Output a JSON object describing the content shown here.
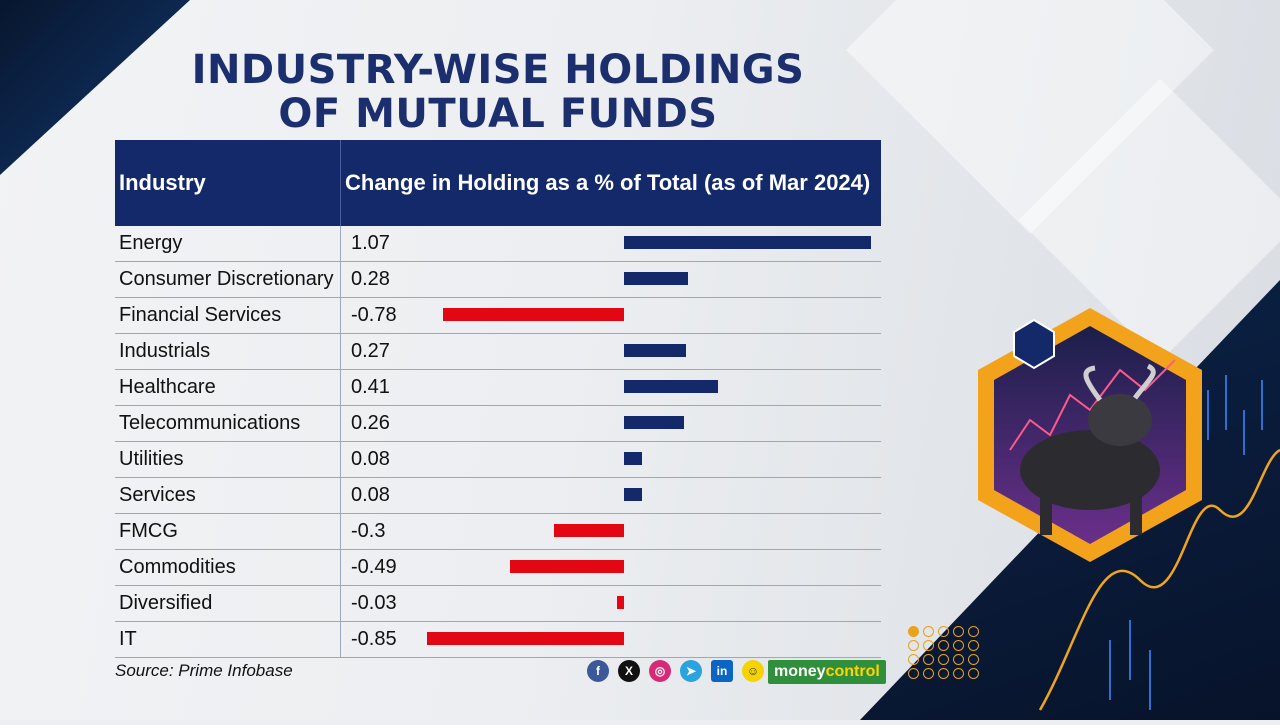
{
  "title_line1": "INDUSTRY-WISE HOLDINGS",
  "title_line2": "OF MUTUAL FUNDS",
  "colors": {
    "header_bg": "#13296a",
    "positive": "#13296a",
    "negative": "#e30613",
    "title": "#1b2f6e"
  },
  "chart_data": {
    "type": "bar",
    "title": "INDUSTRY-WISE HOLDINGS OF MUTUAL FUNDS",
    "column_headers": [
      "Industry",
      "Change in Holding as a % of Total (as of Mar 2024)"
    ],
    "categories": [
      "Energy",
      "Consumer Discretionary",
      "Financial Services",
      "Industrials",
      "Healthcare",
      "Telecommunications",
      "Utilities",
      "Services",
      "FMCG",
      "Commodities",
      "Diversified",
      "IT"
    ],
    "values": [
      1.07,
      0.28,
      -0.78,
      0.27,
      0.41,
      0.26,
      0.08,
      0.08,
      -0.3,
      -0.49,
      -0.03,
      -0.85
    ],
    "value_labels": [
      "1.07",
      "0.28",
      "-0.78",
      "0.27",
      "0.41",
      "0.26",
      "0.08",
      "0.08",
      "-0.3",
      "-0.49",
      "-0.03",
      "-0.85"
    ],
    "orientation": "horizontal",
    "xlim": [
      -0.85,
      1.07
    ],
    "grid": false
  },
  "source": "Source: Prime Infobase",
  "socials": [
    "facebook-icon",
    "x-icon",
    "instagram-icon",
    "telegram-icon",
    "linkedin-icon",
    "snapchat-icon"
  ],
  "logo": {
    "part1": "money",
    "part2": "control"
  }
}
